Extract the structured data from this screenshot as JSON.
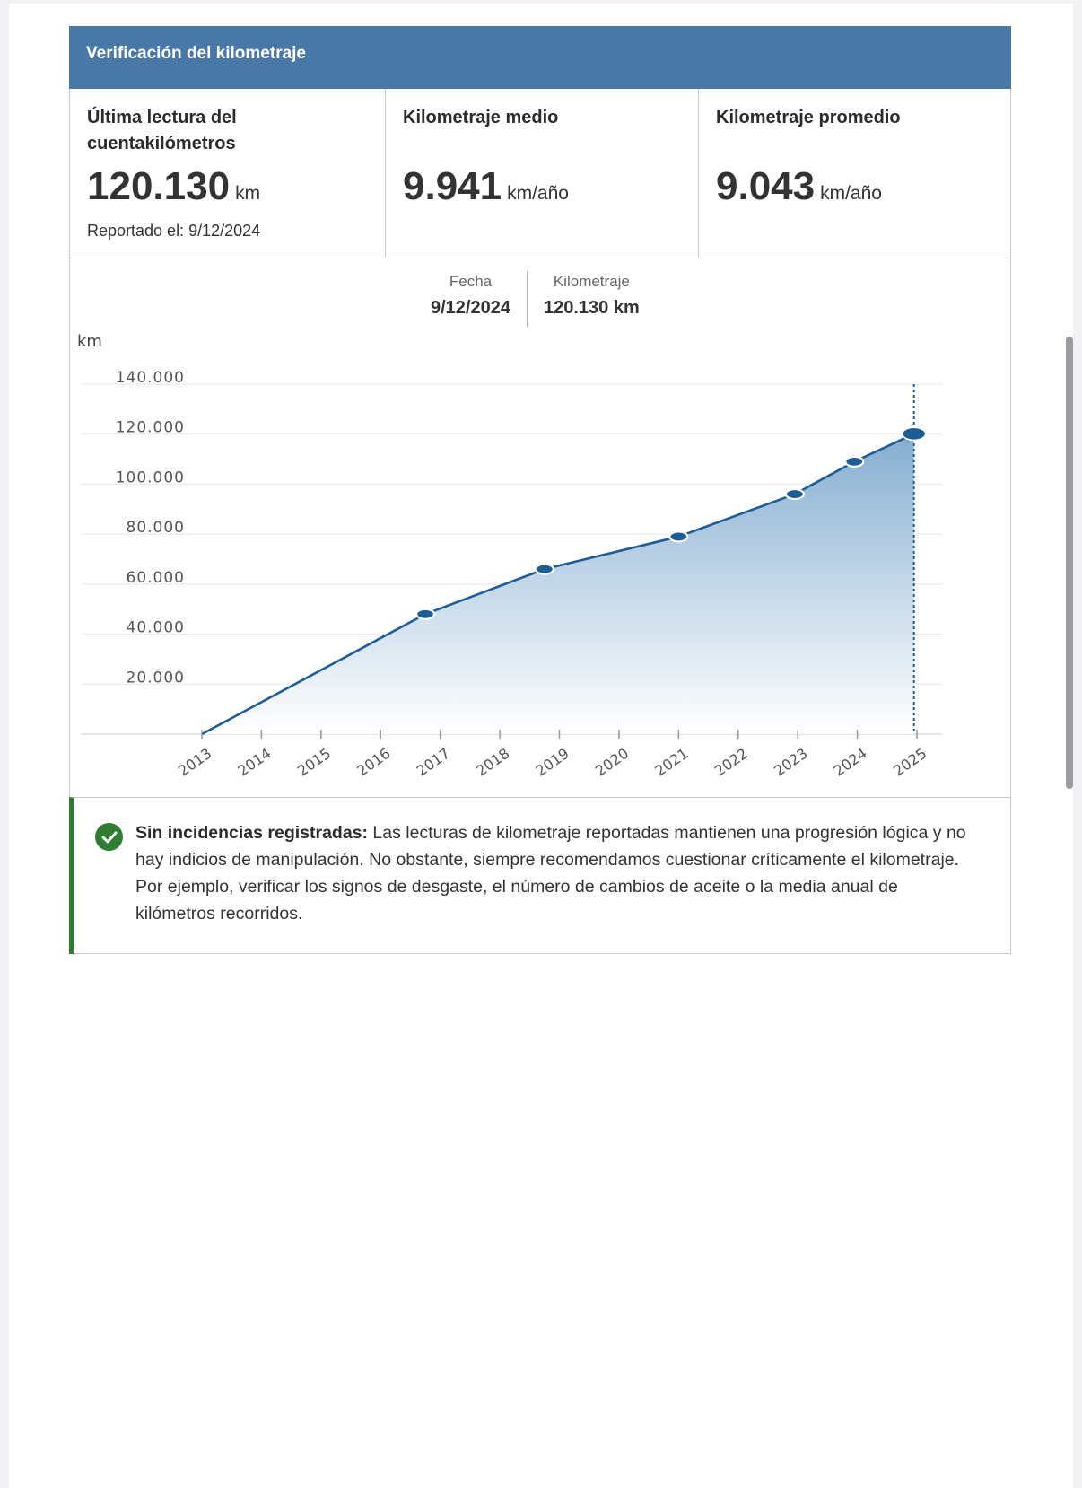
{
  "card": {
    "title": "Verificación del kilometraje"
  },
  "stats": [
    {
      "title": "Última lectura del cuentakilómetros",
      "value": "120.130",
      "unit": "km",
      "sub": "Reportado el: 9/12/2024"
    },
    {
      "title": "Kilometraje medio",
      "value": "9.941",
      "unit": "km/año"
    },
    {
      "title": "Kilometraje promedio",
      "value": "9.043",
      "unit": "km/año"
    }
  ],
  "tooltip": {
    "date_label": "Fecha",
    "date_value": "9/12/2024",
    "km_label": "Kilometraje",
    "km_value": "120.130 km"
  },
  "chart_data": {
    "type": "area",
    "ylabel": "km",
    "xlabel": "",
    "title": "",
    "ylim": [
      0,
      140000
    ],
    "xlim": [
      2013,
      2025
    ],
    "y_ticks": [
      20000,
      40000,
      60000,
      80000,
      100000,
      120000,
      140000
    ],
    "y_tick_labels": [
      "20.000",
      "40.000",
      "60.000",
      "80.000",
      "100.000",
      "120.000",
      "140.000"
    ],
    "x_ticks": [
      2013,
      2014,
      2015,
      2016,
      2017,
      2018,
      2019,
      2020,
      2021,
      2022,
      2023,
      2024,
      2025
    ],
    "x_tick_labels": [
      "2013",
      "2014",
      "2015",
      "2016",
      "2017",
      "2018",
      "2019",
      "2020",
      "2021",
      "2022",
      "2023",
      "2024",
      "2025"
    ],
    "grid": true,
    "series": [
      {
        "points": [
          {
            "x": 2013.0,
            "y": 0
          },
          {
            "x": 2016.75,
            "y": 48000
          },
          {
            "x": 2018.75,
            "y": 66000
          },
          {
            "x": 2021.0,
            "y": 79000
          },
          {
            "x": 2022.95,
            "y": 96000
          },
          {
            "x": 2023.95,
            "y": 109000
          },
          {
            "x": 2024.95,
            "y": 120130
          }
        ],
        "highlighted_index": 6
      }
    ],
    "colors": {
      "line": "#1d5d96",
      "fill_top": "#7ea9ce",
      "fill_bottom": "#ffffff",
      "crosshair": "#1d5d96"
    }
  },
  "notice": {
    "lead": "Sin incidencias registradas:",
    "text": " Las lecturas de kilometraje reportadas mantienen una progresión lógica y no hay indicios de manipulación. No obstante, siempre recomendamos cuestionar críticamente el kilometraje. Por ejemplo, verificar los signos de desgaste, el número de cambios de aceite o la media anual de kilómetros recorridos.",
    "icon": "check-circle-icon",
    "accent": "#2e7d32"
  }
}
